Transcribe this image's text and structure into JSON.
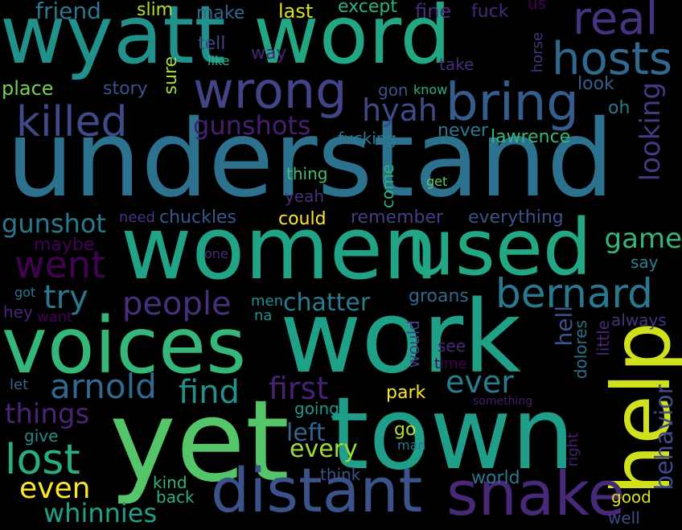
{
  "words": [
    {
      "text": "wyatt",
      "color": "#21918c"
    },
    {
      "text": "word",
      "color": "#22a785"
    },
    {
      "text": "understand",
      "color": "#2c728e"
    },
    {
      "text": "women",
      "color": "#20a386"
    },
    {
      "text": "used",
      "color": "#22a884"
    },
    {
      "text": "voices",
      "color": "#35b779"
    },
    {
      "text": "work",
      "color": "#1fa187"
    },
    {
      "text": "yet",
      "color": "#54c568"
    },
    {
      "text": "town",
      "color": "#1f9e89"
    },
    {
      "text": "help",
      "color": "#d0e11c"
    },
    {
      "text": "distant",
      "color": "#3b528b"
    },
    {
      "text": "snake",
      "color": "#482878"
    },
    {
      "text": "real",
      "color": "#46327e"
    },
    {
      "text": "hosts",
      "color": "#31688e"
    },
    {
      "text": "bring",
      "color": "#365c8d"
    },
    {
      "text": "wrong",
      "color": "#414487"
    },
    {
      "text": "killed",
      "color": "#3e4a89"
    },
    {
      "text": "bernard",
      "color": "#2a788e"
    },
    {
      "text": "went",
      "color": "#440154"
    },
    {
      "text": "lost",
      "color": "#29af7f"
    },
    {
      "text": "arnold",
      "color": "#31688e"
    },
    {
      "text": "people",
      "color": "#472f7d"
    },
    {
      "text": "try",
      "color": "#2a788e"
    },
    {
      "text": "find",
      "color": "#21918c"
    },
    {
      "text": "first",
      "color": "#482173"
    },
    {
      "text": "ever",
      "color": "#277f8e"
    },
    {
      "text": "game",
      "color": "#35b779"
    },
    {
      "text": "gunshots",
      "color": "#481f70"
    },
    {
      "text": "gunshot",
      "color": "#2a788e"
    },
    {
      "text": "hyah",
      "color": "#3e4a89"
    },
    {
      "text": "looking",
      "color": "#443a83"
    },
    {
      "text": "things",
      "color": "#482475"
    },
    {
      "text": "even",
      "color": "#fde725"
    },
    {
      "text": "whinnies",
      "color": "#1fa187"
    },
    {
      "text": "chatter",
      "color": "#287c8e"
    },
    {
      "text": "every",
      "color": "#a0da39"
    },
    {
      "text": "left",
      "color": "#33638d"
    },
    {
      "text": "hell",
      "color": "#3b528b"
    },
    {
      "text": "behavior",
      "color": "#3e4a89"
    },
    {
      "text": "friend",
      "color": "#2a788e"
    },
    {
      "text": "slim",
      "color": "#b5de2b"
    },
    {
      "text": "make",
      "color": "#31688e"
    },
    {
      "text": "last",
      "color": "#d8e219"
    },
    {
      "text": "except",
      "color": "#2db27d"
    },
    {
      "text": "fine",
      "color": "#472d7b"
    },
    {
      "text": "fuck",
      "color": "#482878"
    },
    {
      "text": "us",
      "color": "#440154"
    },
    {
      "text": "tell",
      "color": "#404688"
    },
    {
      "text": "way",
      "color": "#482475"
    },
    {
      "text": "like",
      "color": "#2fb47c"
    },
    {
      "text": "horse",
      "color": "#46337f"
    },
    {
      "text": "take",
      "color": "#472c7a"
    },
    {
      "text": "place",
      "color": "#75d054"
    },
    {
      "text": "story",
      "color": "#3b528b"
    },
    {
      "text": "sure",
      "color": "#a5db36"
    },
    {
      "text": "gon",
      "color": "#3b528b"
    },
    {
      "text": "know",
      "color": "#29af7f"
    },
    {
      "text": "look",
      "color": "#355f8d"
    },
    {
      "text": "oh",
      "color": "#2a788e"
    },
    {
      "text": "fucking",
      "color": "#2a788e"
    },
    {
      "text": "never",
      "color": "#2a788e"
    },
    {
      "text": "lawrence",
      "color": "#35b779"
    },
    {
      "text": "thing",
      "color": "#42be71"
    },
    {
      "text": "get",
      "color": "#5ec962"
    },
    {
      "text": "come",
      "color": "#2db27d"
    },
    {
      "text": "yeah",
      "color": "#472f7d"
    },
    {
      "text": "could",
      "color": "#fde725"
    },
    {
      "text": "need",
      "color": "#46327e"
    },
    {
      "text": "chuckles",
      "color": "#38588c"
    },
    {
      "text": "remember",
      "color": "#433e85"
    },
    {
      "text": "everything",
      "color": "#3b528b"
    },
    {
      "text": "maybe",
      "color": "#440154"
    },
    {
      "text": "one",
      "color": "#482878"
    },
    {
      "text": "say",
      "color": "#25848e"
    },
    {
      "text": "got",
      "color": "#2a788e"
    },
    {
      "text": "men",
      "color": "#21918c"
    },
    {
      "text": "na",
      "color": "#21918c"
    },
    {
      "text": "groans",
      "color": "#31688e"
    },
    {
      "text": "hey",
      "color": "#482575"
    },
    {
      "text": "want",
      "color": "#440154"
    },
    {
      "text": "always",
      "color": "#46337f"
    },
    {
      "text": "little",
      "color": "#482576"
    },
    {
      "text": "dolores",
      "color": "#2e6e8e"
    },
    {
      "text": "would",
      "color": "#433e85"
    },
    {
      "text": "see",
      "color": "#482878"
    },
    {
      "text": "time",
      "color": "#440154"
    },
    {
      "text": "let",
      "color": "#31688e"
    },
    {
      "text": "park",
      "color": "#fde725"
    },
    {
      "text": "going",
      "color": "#1f968b"
    },
    {
      "text": "something",
      "color": "#481a6c"
    },
    {
      "text": "give",
      "color": "#23898e"
    },
    {
      "text": "go",
      "color": "#b5de2b"
    },
    {
      "text": "man",
      "color": "#2a788e"
    },
    {
      "text": "right",
      "color": "#481f70"
    },
    {
      "text": "kind",
      "color": "#31b57b"
    },
    {
      "text": "back",
      "color": "#2ab07f"
    },
    {
      "text": "think",
      "color": "#3b528b"
    },
    {
      "text": "world",
      "color": "#2a788e"
    },
    {
      "text": "good",
      "color": "#d8e219"
    },
    {
      "text": "well",
      "color": "#3e4a89"
    }
  ]
}
